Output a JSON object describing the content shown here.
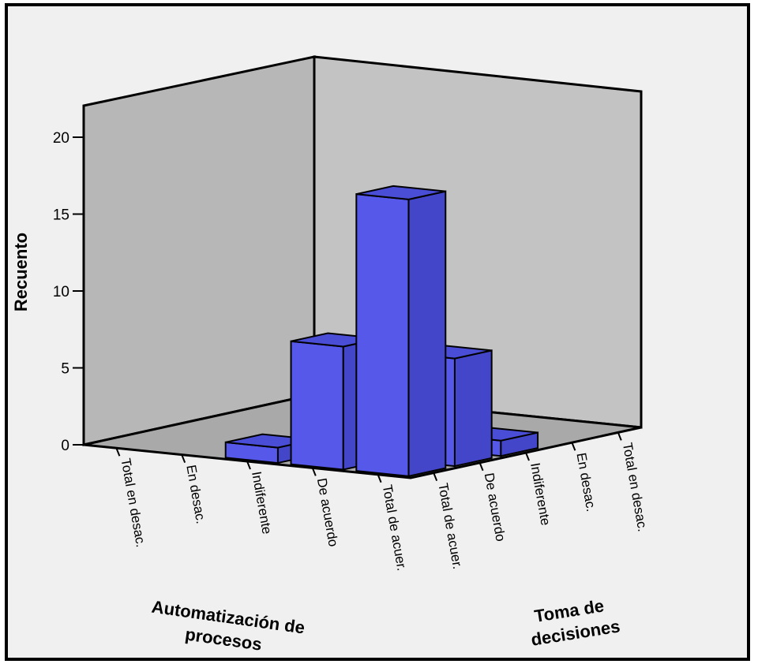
{
  "chart_data": {
    "type": "bar3d",
    "ylabel": "Recuento",
    "xlabel": [
      "Automatización de",
      "procesos"
    ],
    "zlabel": [
      "Toma de",
      "decisiones"
    ],
    "y_ticks": [
      "0",
      "5",
      "10",
      "15",
      "20"
    ],
    "ylim": [
      0,
      20
    ],
    "x_categories": [
      "Total en desac.",
      "En desac.",
      "Indiferente",
      "De acuerdo",
      "Total de acuer."
    ],
    "z_categories": [
      "Total de acuer.",
      "De acuerdo",
      "Indiferente",
      "En desac.",
      "Total en desac."
    ],
    "bars": [
      {
        "x": "Indiferente",
        "z": "Total de acuer.",
        "value": 1
      },
      {
        "x": "De acuerdo",
        "z": "Total de acuer.",
        "value": 8
      },
      {
        "x": "Total de acuer.",
        "z": "Total de acuer.",
        "value": 18
      },
      {
        "x": "Total de acuer.",
        "z": "De acuerdo",
        "value": 7
      },
      {
        "x": "Total de acuer.",
        "z": "Indiferente",
        "value": 1
      }
    ],
    "bar_color": "#5558e8",
    "background": "#f0f0f0",
    "wall_color": "#c0c0c0",
    "floor_color": "#a8a8a8"
  }
}
